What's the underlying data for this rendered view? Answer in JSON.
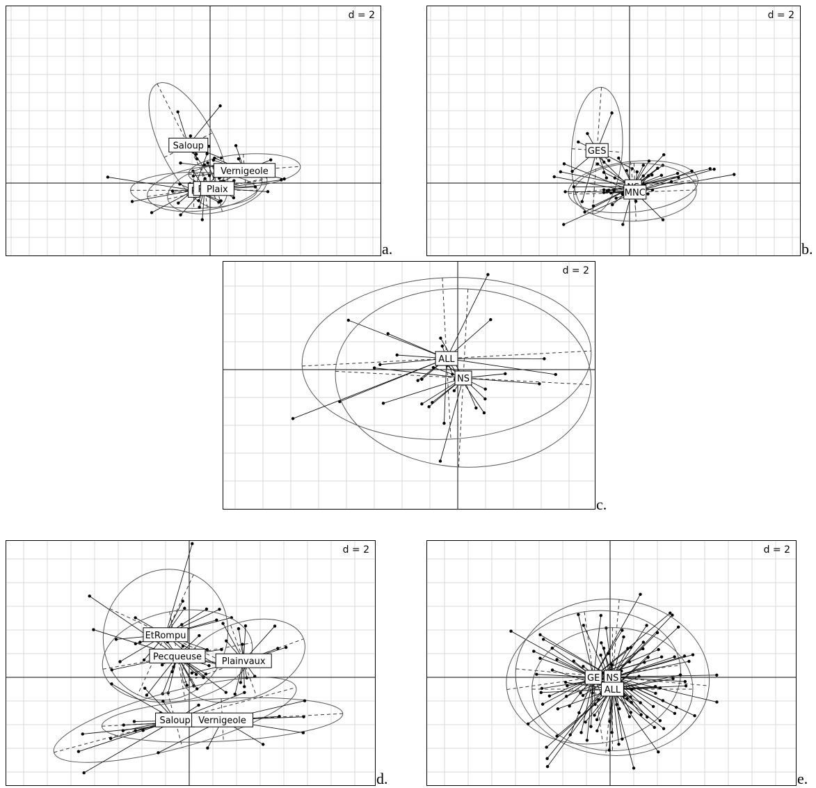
{
  "figure": {
    "panels": [
      {
        "id": "a",
        "letter": "a.",
        "scale_label": "d = 2",
        "groups": [
          {
            "label": "Saloup",
            "center": [
              -1.2,
              2.1
            ]
          },
          {
            "label": "Vernigeole",
            "center": [
              1.9,
              0.7
            ]
          },
          {
            "label": "P",
            "center": [
              -0.9,
              -0.4
            ]
          },
          {
            "label": "Pla",
            "center": [
              -0.3,
              -0.3
            ]
          },
          {
            "label": "Plaix",
            "center": [
              0.4,
              -0.3
            ]
          }
        ]
      },
      {
        "id": "b",
        "letter": "b.",
        "scale_label": "d = 2",
        "groups": [
          {
            "label": "GES",
            "center": [
              -1.8,
              1.8
            ]
          },
          {
            "label": "NS",
            "center": [
              0.2,
              -0.2
            ]
          },
          {
            "label": "MNC",
            "center": [
              0.3,
              -0.5
            ]
          }
        ]
      },
      {
        "id": "c",
        "letter": "c.",
        "scale_label": "d = 2",
        "groups": [
          {
            "label": "ALL",
            "center": [
              -0.4,
              0.4
            ]
          },
          {
            "label": "NS",
            "center": [
              0.2,
              -0.3
            ]
          }
        ]
      },
      {
        "id": "d",
        "letter": "d.",
        "scale_label": "d = 2",
        "groups": [
          {
            "label": "EtRompu",
            "center": [
              -1.0,
              1.8
            ]
          },
          {
            "label": "Pecqueuse",
            "center": [
              -0.5,
              0.9
            ]
          },
          {
            "label": "Plainvaux",
            "center": [
              2.3,
              0.7
            ]
          },
          {
            "label": "Saloup",
            "center": [
              -0.6,
              -1.8
            ]
          },
          {
            "label": "Vernigeole",
            "center": [
              1.4,
              -1.8
            ]
          }
        ]
      },
      {
        "id": "e",
        "letter": "e.",
        "scale_label": "d = 2",
        "groups": [
          {
            "label": "GE",
            "center": [
              -0.7,
              0.0
            ]
          },
          {
            "label": "NS",
            "center": [
              0.1,
              0.0
            ]
          },
          {
            "label": "ALL",
            "center": [
              0.1,
              -0.5
            ]
          }
        ]
      }
    ]
  }
}
